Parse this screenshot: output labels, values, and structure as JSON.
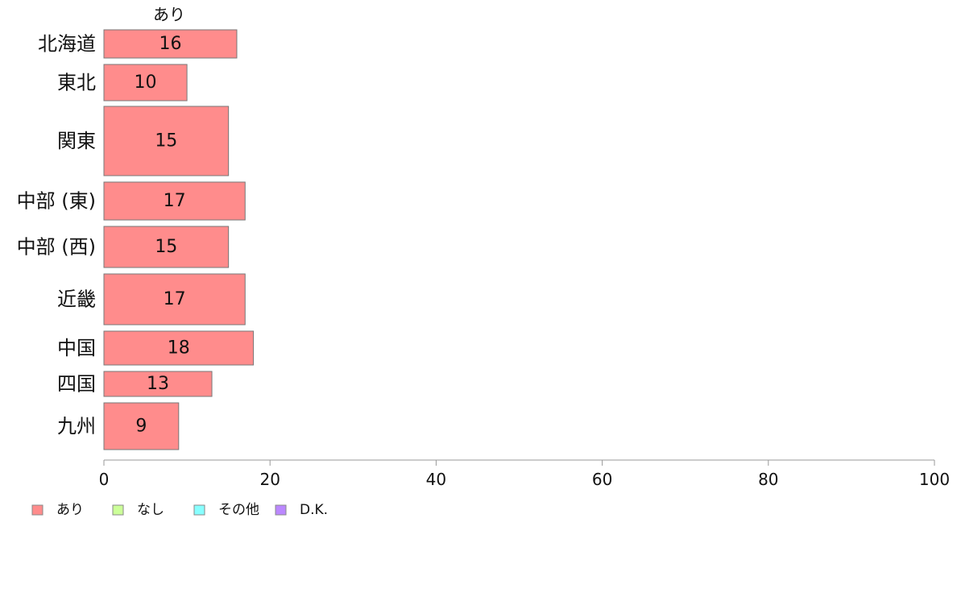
{
  "chart_data": {
    "type": "bar",
    "orientation": "horizontal",
    "stacked": true,
    "bar_widths_vary": true,
    "column_label": "あり",
    "categories": [
      "北海道",
      "東北",
      "関東",
      "中部 (東)",
      "中部 (西)",
      "近畿",
      "中国",
      "四国",
      "九州"
    ],
    "series": [
      {
        "name": "あり",
        "color": "#FF8C8C",
        "values": [
          16,
          10,
          15,
          17,
          15,
          17,
          18,
          13,
          9
        ]
      },
      {
        "name": "なし",
        "color": "#CCFF99",
        "values": [
          null,
          null,
          null,
          null,
          null,
          null,
          null,
          null,
          null
        ]
      },
      {
        "name": "その他",
        "color": "#88FFFF",
        "values": [
          null,
          null,
          null,
          null,
          null,
          null,
          null,
          null,
          null
        ]
      },
      {
        "name": "D.K.",
        "color": "#BB88FF",
        "values": [
          null,
          null,
          null,
          null,
          null,
          null,
          null,
          null,
          null
        ]
      }
    ],
    "data_labels": [
      "16",
      "10",
      "15",
      "17",
      "15",
      "17",
      "18",
      "13",
      "9"
    ],
    "xlim": [
      0,
      100
    ],
    "x_ticks": [
      0,
      20,
      40,
      60,
      80,
      100
    ],
    "grid": false,
    "legend_position": "bottom-left"
  }
}
